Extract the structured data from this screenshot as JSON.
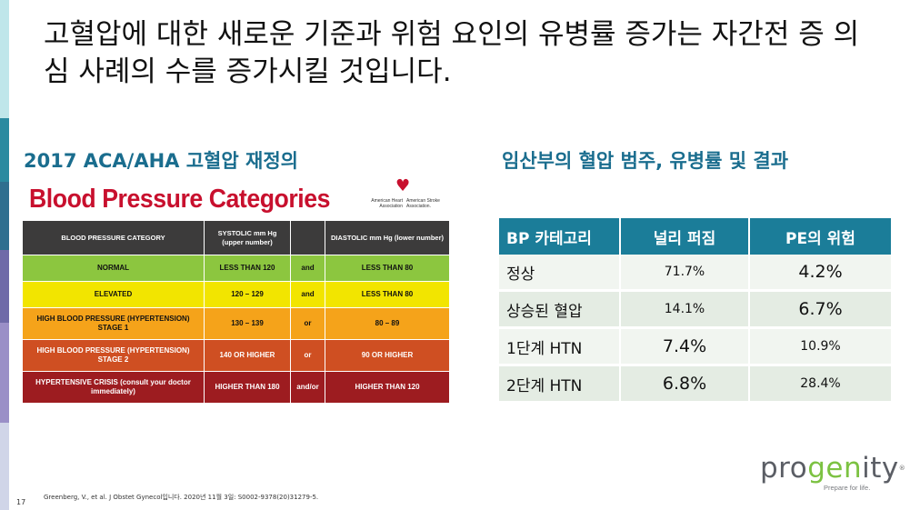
{
  "slide": {
    "title": "고혈압에 대한 새로운 기준과 위험 요인의 유병률 증가는 자간전 증 의심 사례의 수를 증가시킬 것입니다.",
    "left_heading": "2017 ACA/AHA 고혈압 재정의",
    "right_heading": "임산부의 혈압 범주, 유병률 및 결과",
    "footnote": "Greenberg, V., et al. J Obstet Gynecol입니다. 2020년 11월 3일: S0002-9378(20)31279-5.",
    "page_number": "17"
  },
  "bp_chart": {
    "title": "Blood Pressure Categories",
    "logo_left": "American Heart Association",
    "logo_right": "American Stroke Association.",
    "header": {
      "category": "BLOOD PRESSURE CATEGORY",
      "systolic": "SYSTOLIC mm Hg (upper number)",
      "diastolic": "DIASTOLIC mm Hg (lower number)"
    },
    "rows": [
      {
        "category": "NORMAL",
        "systolic": "LESS THAN 120",
        "conj": "and",
        "diastolic": "LESS THAN 80",
        "color": "#8cc63f"
      },
      {
        "category": "ELEVATED",
        "systolic": "120 – 129",
        "conj": "and",
        "diastolic": "LESS THAN 80",
        "color": "#f2e500"
      },
      {
        "category": "HIGH BLOOD PRESSURE (HYPERTENSION) STAGE 1",
        "systolic": "130 – 139",
        "conj": "or",
        "diastolic": "80 – 89",
        "color": "#f5a31a"
      },
      {
        "category": "HIGH BLOOD PRESSURE (HYPERTENSION) STAGE 2",
        "systolic": "140 OR HIGHER",
        "conj": "or",
        "diastolic": "90 OR HIGHER",
        "color": "#cf4f22"
      },
      {
        "category": "HYPERTENSIVE CRISIS (consult your doctor immediately)",
        "systolic": "HIGHER THAN 180",
        "conj": "and/or",
        "diastolic": "HIGHER THAN 120",
        "color": "#9d1c20"
      }
    ]
  },
  "pregnancy_table": {
    "headers": [
      "BP 카테고리",
      "널리 퍼짐",
      "PE의 위험"
    ],
    "rows": [
      {
        "category": "정상",
        "prevalence": "71.7%",
        "pe_risk": "4.2%"
      },
      {
        "category": "상승된 혈압",
        "prevalence": "14.1%",
        "pe_risk": "6.7%"
      },
      {
        "category": "1단계 HTN",
        "prevalence": "7.4%",
        "pe_risk": "10.9%"
      },
      {
        "category": "2단계 HTN",
        "prevalence": "6.8%",
        "pe_risk": "28.4%"
      }
    ]
  },
  "logo": {
    "word_a": "pro",
    "word_b": "gen",
    "word_c": "ity",
    "registered": "®",
    "tagline": "Prepare for life."
  },
  "colors": {
    "heading": "#1a6d8e",
    "table_header": "#1b7d99",
    "bp_title": "#c8102e",
    "logo_green": "#7cc242"
  }
}
